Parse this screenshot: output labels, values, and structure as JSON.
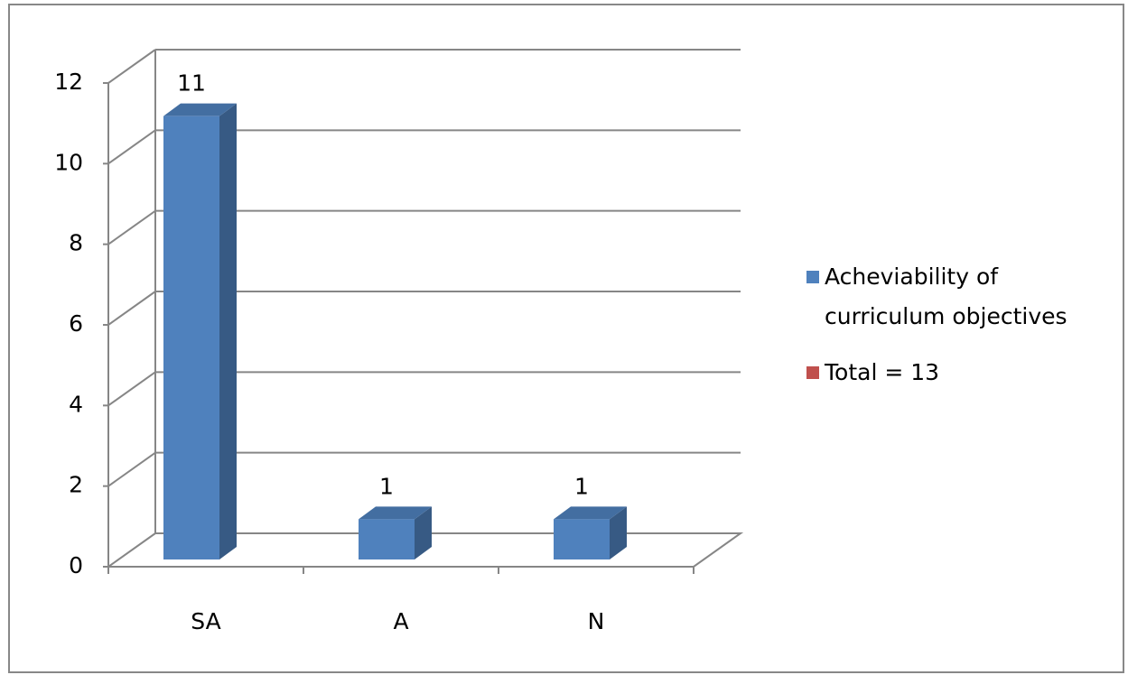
{
  "chart_data": {
    "type": "bar3d",
    "categories": [
      "SA",
      "A",
      "N"
    ],
    "series": [
      {
        "name": "Acheviability of curriculum objectives",
        "color": "#4f81bd",
        "values": [
          11,
          1,
          1
        ]
      },
      {
        "name": "Total = 13",
        "color": "#c0504d",
        "values": [
          null,
          null,
          null
        ]
      }
    ],
    "ylim": [
      0,
      12
    ],
    "yticks": [
      0,
      2,
      4,
      6,
      8,
      10,
      12
    ],
    "grid": true,
    "legend": "right",
    "data_labels": true
  }
}
